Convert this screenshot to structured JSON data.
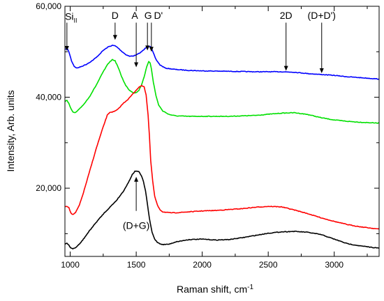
{
  "chart_data": {
    "type": "line",
    "title": "",
    "xlabel": "Raman shift, cm",
    "xlabel_superscript": "-1",
    "ylabel": "Intensity, Arb. units",
    "xlim": [
      960,
      3340
    ],
    "ylim": [
      5000,
      60000
    ],
    "x_ticks": [
      1000,
      1500,
      2000,
      2500,
      3000
    ],
    "x_tick_labels": [
      "1000",
      "1500",
      "2000",
      "2500",
      "3000"
    ],
    "y_ticks": [
      20000,
      40000,
      60000
    ],
    "y_tick_labels": [
      "20,000",
      "40,000",
      "60,000"
    ],
    "grid": false,
    "legend": "none",
    "annotations": [
      {
        "text": "Si",
        "sub": "II",
        "x": 975,
        "label_y": 57800,
        "arrow_from": 56400,
        "arrow_to": 50200
      },
      {
        "text": "D",
        "x": 1340,
        "label_y": 58000,
        "arrow_from": 56400,
        "arrow_to": 52600
      },
      {
        "text": "A",
        "x": 1500,
        "label_y": 58000,
        "arrow_from": 56400,
        "arrow_to": 46600
      },
      {
        "text": "G",
        "x": 1585,
        "label_y": 58000,
        "arrow_from": 56400,
        "arrow_to": 50300
      },
      {
        "text": "D'",
        "x": 1615,
        "label_y": 58000,
        "arrow_from": 56400,
        "arrow_to": 50000
      },
      {
        "text": "2D",
        "x": 2635,
        "label_y": 58000,
        "arrow_from": 56400,
        "arrow_to": 45800
      },
      {
        "text": "(D+D')",
        "x": 2905,
        "label_y": 58000,
        "arrow_from": 56400,
        "arrow_to": 45300
      },
      {
        "text": "(D+G)",
        "x": 1500,
        "label_y": 11800,
        "arrow_from": 15000,
        "arrow_to": 22500
      }
    ],
    "series": [
      {
        "color": "#0000ff",
        "x": [
          960,
          975,
          990,
          1010,
          1030,
          1050,
          1080,
          1120,
          1160,
          1200,
          1250,
          1290,
          1320,
          1340,
          1360,
          1390,
          1420,
          1450,
          1480,
          1500,
          1520,
          1540,
          1560,
          1580,
          1595,
          1605,
          1615,
          1630,
          1650,
          1680,
          1720,
          1800,
          1900,
          2000,
          2200,
          2400,
          2600,
          2700,
          2800,
          2900,
          3000,
          3100,
          3200,
          3340
        ],
        "y": [
          50500,
          50800,
          50000,
          48000,
          46800,
          46400,
          46700,
          47200,
          47900,
          48800,
          50300,
          51100,
          51400,
          51300,
          50900,
          50100,
          49400,
          49000,
          49100,
          49300,
          49600,
          50000,
          50500,
          51100,
          51300,
          51200,
          50800,
          49700,
          48300,
          47100,
          46400,
          46100,
          45900,
          45800,
          45700,
          45600,
          45600,
          45500,
          45200,
          45000,
          44800,
          44500,
          44300,
          44000
        ]
      },
      {
        "color": "#00e000",
        "x": [
          960,
          975,
          990,
          1005,
          1020,
          1040,
          1070,
          1110,
          1150,
          1200,
          1250,
          1290,
          1320,
          1340,
          1360,
          1390,
          1420,
          1450,
          1480,
          1500,
          1520,
          1540,
          1560,
          1580,
          1595,
          1605,
          1615,
          1630,
          1650,
          1670,
          1700,
          1750,
          1800,
          1900,
          2000,
          2200,
          2400,
          2600,
          2700,
          2800,
          2900,
          3000,
          3100,
          3200,
          3340
        ],
        "y": [
          39000,
          39300,
          38700,
          37500,
          36700,
          36600,
          37400,
          38700,
          40300,
          42800,
          45600,
          47500,
          48300,
          48000,
          46800,
          44500,
          42600,
          41500,
          41000,
          41000,
          41500,
          42700,
          44500,
          46700,
          47800,
          47600,
          46300,
          43300,
          40300,
          38300,
          37000,
          36200,
          35900,
          35800,
          35800,
          35800,
          36000,
          36500,
          36600,
          36200,
          35500,
          35000,
          34700,
          34500,
          34300
        ]
      },
      {
        "color": "#ff0000",
        "x": [
          960,
          975,
          990,
          1005,
          1020,
          1040,
          1070,
          1100,
          1150,
          1200,
          1250,
          1280,
          1300,
          1330,
          1360,
          1400,
          1440,
          1480,
          1510,
          1540,
          1560,
          1575,
          1590,
          1600,
          1610,
          1625,
          1640,
          1660,
          1680,
          1700,
          1750,
          1800,
          1900,
          2000,
          2100,
          2200,
          2300,
          2400,
          2500,
          2600,
          2700,
          2800,
          2900,
          3000,
          3100,
          3200,
          3340
        ],
        "y": [
          16000,
          16000,
          15800,
          14500,
          14200,
          14600,
          16300,
          19000,
          24000,
          29000,
          33500,
          36000,
          36700,
          36800,
          37300,
          38600,
          39600,
          40900,
          41900,
          42600,
          42300,
          40500,
          36000,
          31500,
          26000,
          21500,
          18200,
          16300,
          15300,
          14800,
          14600,
          14600,
          14800,
          15000,
          15100,
          15300,
          15500,
          15800,
          16000,
          15900,
          15200,
          14400,
          13500,
          12700,
          12000,
          11500,
          11000
        ]
      },
      {
        "color": "#000000",
        "x": [
          960,
          975,
          990,
          1005,
          1020,
          1040,
          1070,
          1100,
          1150,
          1200,
          1250,
          1300,
          1350,
          1400,
          1440,
          1470,
          1490,
          1505,
          1520,
          1540,
          1555,
          1570,
          1585,
          1600,
          1620,
          1640,
          1660,
          1680,
          1700,
          1750,
          1800,
          1900,
          2000,
          2100,
          2200,
          2300,
          2400,
          2500,
          2600,
          2700,
          2800,
          2900,
          3000,
          3100,
          3200,
          3340
        ],
        "y": [
          7700,
          7900,
          7500,
          6800,
          6700,
          6900,
          7700,
          8800,
          10800,
          12600,
          14300,
          15800,
          17300,
          19200,
          21200,
          23000,
          23700,
          23800,
          23600,
          22700,
          21400,
          19500,
          16500,
          13300,
          10300,
          8800,
          8100,
          7800,
          7600,
          7700,
          8200,
          8700,
          8800,
          8600,
          8700,
          9100,
          9600,
          10100,
          10400,
          10500,
          10300,
          9800,
          8800,
          7800,
          7300,
          6800
        ]
      }
    ]
  }
}
